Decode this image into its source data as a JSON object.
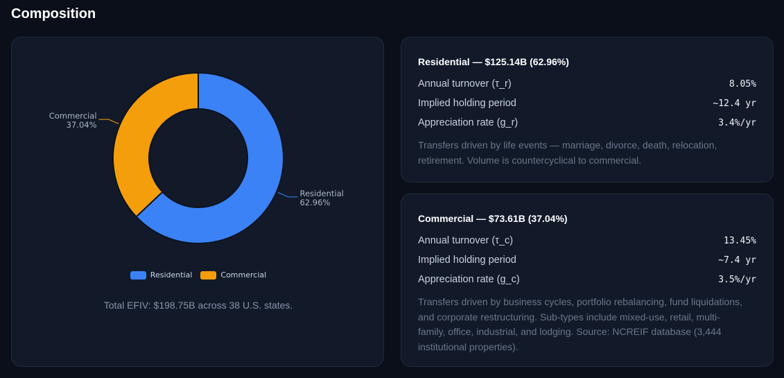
{
  "page": {
    "title": "Composition"
  },
  "chart_data": {
    "type": "pie",
    "donut": true,
    "categories": [
      "Residential",
      "Commercial"
    ],
    "values": [
      62.96,
      37.04
    ],
    "value_labels": [
      "62.96%",
      "37.04%"
    ],
    "colors": [
      "#3b82f6",
      "#f59e0b"
    ],
    "legend_position": "bottom",
    "title": "",
    "xlabel": "",
    "ylabel": ""
  },
  "summary": {
    "total_text": "Total EFIV: $198.75B across 38 U.S. states."
  },
  "segments": [
    {
      "heading": "Residential — $125.14B (62.96%)",
      "rows": [
        {
          "label": "Annual turnover (τ_r)",
          "value": "8.05%"
        },
        {
          "label": "Implied holding period",
          "value": "~12.4 yr"
        },
        {
          "label": "Appreciation rate (g_r)",
          "value": "3.4%/yr"
        }
      ],
      "description": "Transfers driven by life events — marriage, divorce, death, relocation, retirement. Volume is countercyclical to commercial."
    },
    {
      "heading": "Commercial — $73.61B (37.04%)",
      "rows": [
        {
          "label": "Annual turnover (τ_c)",
          "value": "13.45%"
        },
        {
          "label": "Implied holding period",
          "value": "~7.4 yr"
        },
        {
          "label": "Appreciation rate (g_c)",
          "value": "3.5%/yr"
        }
      ],
      "description": "Transfers driven by business cycles, portfolio rebalancing, fund liquidations, and corporate restructuring. Sub-types include mixed-use, retail, multi-family, office, industrial, and lodging. Source: NCREIF database (3,444 institutional properties)."
    }
  ]
}
